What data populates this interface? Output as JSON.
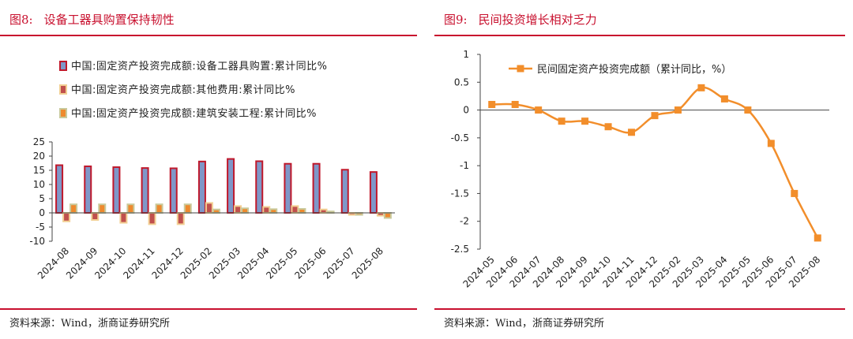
{
  "left": {
    "fig_label": "图8:",
    "fig_title": "设备工器具购置保持韧性",
    "source": "资料来源：Wind，浙商证券研究所"
  },
  "right": {
    "fig_label": "图9:",
    "fig_title": "民间投资增长相对乏力",
    "source": "资料来源：Wind，浙商证券研究所"
  },
  "colors": {
    "accent": "#c8102e",
    "equip_fill": "#7f97c8",
    "equip_border": "#c0182b",
    "other_fill": "#c0504d",
    "other_border": "#f2cf93",
    "build_fill": "#ee8a2e",
    "build_border": "#c9c99b",
    "line": "#f28e2b"
  },
  "chart_data": [
    {
      "type": "bar",
      "title": "设备工器具购置保持韧性",
      "categories": [
        "2024-08",
        "2024-09",
        "2024-10",
        "2024-11",
        "2024-12",
        "2025-02",
        "2025-03",
        "2025-04",
        "2025-05",
        "2025-06",
        "2025-07",
        "2025-08"
      ],
      "series": [
        {
          "name": "中国:固定资产投资完成额:设备工器具购置:累计同比%",
          "values": [
            16.8,
            16.4,
            16.1,
            15.8,
            15.7,
            18.1,
            19.0,
            18.2,
            17.3,
            17.3,
            15.2,
            14.4
          ]
        },
        {
          "name": "中国:固定资产投资完成额:其他费用:累计同比%",
          "values": [
            -3.0,
            -2.5,
            -3.5,
            -4.0,
            -4.0,
            3.5,
            2.4,
            2.1,
            2.4,
            1.2,
            -0.7,
            -1.0
          ]
        },
        {
          "name": "中国:固定资产投资完成额:建筑安装工程:累计同比%",
          "values": [
            3.0,
            3.0,
            3.0,
            3.0,
            3.0,
            1.2,
            1.6,
            1.3,
            1.4,
            0.5,
            -0.7,
            -1.8
          ]
        }
      ],
      "yticks": [
        "25",
        "20",
        "15",
        "10",
        "5",
        "0",
        "-5",
        "-10"
      ],
      "ylim": [
        -10,
        25
      ]
    },
    {
      "type": "line",
      "title": "民间投资增长相对乏力",
      "categories": [
        "2024-05",
        "2024-06",
        "2024-07",
        "2024-08",
        "2024-09",
        "2024-10",
        "2024-11",
        "2024-12",
        "2025-02",
        "2025-03",
        "2025-04",
        "2025-05",
        "2025-06",
        "2025-07",
        "2025-08"
      ],
      "series": [
        {
          "name": "民间固定资产投资完成额（累计同比，%）",
          "values": [
            0.1,
            0.1,
            0.0,
            -0.2,
            -0.2,
            -0.3,
            -0.4,
            -0.1,
            0.0,
            0.4,
            0.2,
            0.0,
            -0.6,
            -1.5,
            -2.3
          ]
        }
      ],
      "yticks": [
        "1",
        "0.5",
        "0",
        "-0.5",
        "-1",
        "-1.5",
        "-2",
        "-2.5"
      ],
      "ylim": [
        -2.5,
        1
      ]
    }
  ]
}
